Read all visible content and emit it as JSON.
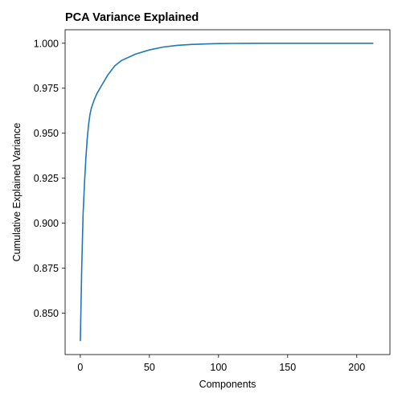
{
  "chart_data": {
    "type": "line",
    "title": "PCA Variance Explained",
    "xlabel": "Components",
    "ylabel": "Cumulative Explained Variance",
    "xlim": [
      -11,
      224
    ],
    "ylim": [
      0.827,
      1.0075
    ],
    "xticks": [
      0,
      50,
      100,
      150,
      200
    ],
    "xtick_labels": [
      "0",
      "50",
      "100",
      "150",
      "200"
    ],
    "yticks": [
      0.85,
      0.875,
      0.9,
      0.925,
      0.95,
      0.975,
      1.0
    ],
    "ytick_labels": [
      "0.850",
      "0.875",
      "0.900",
      "0.925",
      "0.950",
      "0.975",
      "1.000"
    ],
    "grid": false,
    "series": [
      {
        "color": "#1f77b4",
        "x": [
          0,
          1,
          2,
          3,
          4,
          5,
          6,
          7,
          8,
          10,
          12,
          15,
          20,
          25,
          30,
          40,
          50,
          60,
          70,
          80,
          90,
          100,
          110,
          120,
          130,
          150,
          175,
          200,
          212
        ],
        "y": [
          0.8345,
          0.875,
          0.905,
          0.922,
          0.936,
          0.947,
          0.955,
          0.9605,
          0.964,
          0.9685,
          0.972,
          0.976,
          0.9825,
          0.9875,
          0.9905,
          0.994,
          0.9963,
          0.9979,
          0.9988,
          0.9993,
          0.9996,
          0.9998,
          0.9999,
          0.99995,
          0.99998,
          1.0,
          1.0,
          1.0,
          1.0
        ]
      }
    ]
  }
}
